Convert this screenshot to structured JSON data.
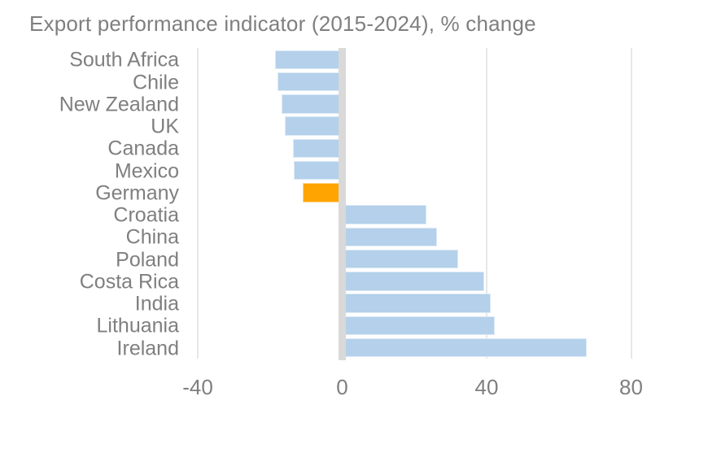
{
  "title": "Export performance indicator (2015-2024), % change",
  "colors": {
    "bar": "#b4d0eb",
    "highlight": "#ffa400",
    "zero_band": "#d9d9d9",
    "gridline": "#e7e7e7",
    "text": "#7f7f7f"
  },
  "chart_data": {
    "type": "bar",
    "orientation": "horizontal",
    "title": "Export performance indicator (2015-2024), % change",
    "categories": [
      "South Africa",
      "Chile",
      "New Zealand",
      "UK",
      "Canada",
      "Mexico",
      "Germany",
      "Croatia",
      "China",
      "Poland",
      "Costa Rica",
      "India",
      "Lithuania",
      "Ireland"
    ],
    "values": [
      -18.5,
      -17.9,
      -16.7,
      -16.0,
      -13.6,
      -13.5,
      -10.9,
      23.3,
      26.3,
      32.2,
      39.4,
      41.1,
      42.3,
      67.7
    ],
    "highlight_category": "Germany",
    "xlabel": "",
    "ylabel": "",
    "x_ticks": [
      -40,
      0,
      40,
      80
    ],
    "xlim": [
      -47,
      92
    ],
    "grid": "vertical gridlines at ticks, thick gray band at zero",
    "legend": false
  }
}
